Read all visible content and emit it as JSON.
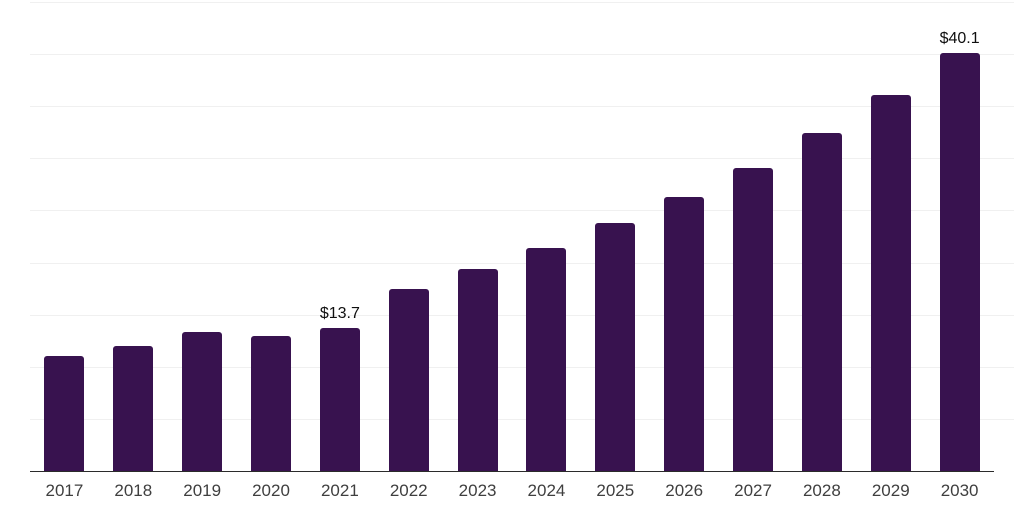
{
  "chart_data": {
    "type": "bar",
    "title": "",
    "xlabel": "",
    "ylabel": "",
    "categories": [
      "2017",
      "2018",
      "2019",
      "2020",
      "2021",
      "2022",
      "2023",
      "2024",
      "2025",
      "2026",
      "2027",
      "2028",
      "2029",
      "2030"
    ],
    "values": [
      11.0,
      12.0,
      13.3,
      13.0,
      13.7,
      17.5,
      19.4,
      21.4,
      23.8,
      26.3,
      29.1,
      32.4,
      36.1,
      40.1
    ],
    "bar_labels": {
      "4": "$13.7",
      "13": "$40.1"
    },
    "ylim": [
      0,
      45
    ],
    "grid": true,
    "gridline_step": 5,
    "legend": "none",
    "colors": {
      "bar": "#38124F",
      "gridline": "#f0f0f0",
      "axis_line": "#2b2b2b",
      "tick_label": "#3f3f3f",
      "value_label": "#0f0f0f",
      "background": "#ffffff"
    }
  }
}
